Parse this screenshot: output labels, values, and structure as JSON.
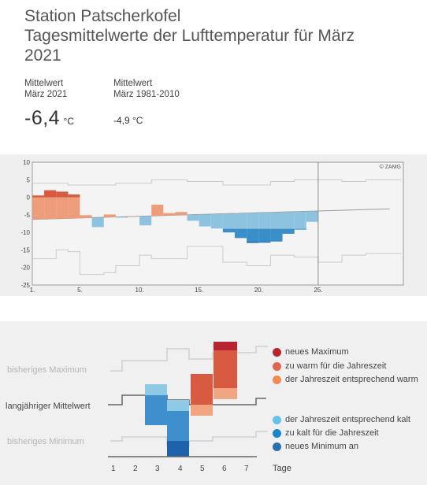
{
  "title_lines": [
    "Station Patscherkofel",
    "Tagesmittelwerte der Lufttemperatur für März",
    "2021"
  ],
  "stats": {
    "current": {
      "label1": "Mittelwert",
      "label2": "März 2021",
      "value": "-6,4",
      "unit": "°C"
    },
    "normal": {
      "label1": "Mittelwert",
      "label2": "März 1981-2010",
      "value": "-4,9 °C"
    }
  },
  "chart_data": {
    "type": "bar",
    "title": "Tagesmittelwerte der Lufttemperatur für März",
    "ylim": [
      -25,
      10
    ],
    "y_ticks": [
      "10",
      "5",
      "0",
      "-5",
      "-10",
      "-15",
      "-20",
      "-25"
    ],
    "x_ticks": [
      "1.",
      "5.",
      "10.",
      "15.",
      "20.",
      "25."
    ],
    "current_day": 25,
    "credit": "© ZAMG",
    "days": [
      1,
      2,
      3,
      4,
      5,
      6,
      7,
      8,
      9,
      10,
      11,
      12,
      13,
      14,
      15,
      16,
      17,
      18,
      19,
      20,
      21,
      22,
      23,
      24
    ],
    "temperature": [
      0.5,
      2,
      1.6,
      0.8,
      -5.1,
      -8.5,
      -4.9,
      -5.8,
      -5.4,
      -8,
      -2.1,
      -4.5,
      -4.2,
      -6.7,
      -8.3,
      -8.9,
      -10,
      -11.6,
      -13,
      -12.9,
      -12.6,
      -10.4,
      -9.2,
      -7
    ],
    "long_term_mean": [
      -6.3,
      -6.2,
      -6.1,
      -6.0,
      -5.9,
      -5.8,
      -5.7,
      -5.6,
      -5.5,
      -5.4,
      -5.3,
      -5.2,
      -5.1,
      -5.0,
      -4.9,
      -4.8,
      -4.7,
      -4.6,
      -4.5,
      -4.4,
      -4.3,
      -4.2,
      -4.1,
      -4.0,
      -3.9,
      -3.8,
      -3.7,
      -3.6,
      -3.5,
      -3.4,
      -3.3
    ],
    "prior_maximum": [
      4,
      4,
      4,
      3.5,
      3.5,
      3.5,
      3.5,
      4,
      4,
      4,
      5,
      5,
      5,
      4.5,
      4.5,
      4.5,
      3.5,
      3.5,
      3.5,
      3.5,
      4.5,
      4.5,
      5,
      5,
      5,
      5,
      4.5,
      4.5,
      5,
      5,
      5
    ],
    "prior_minimum": [
      -17.5,
      -17.5,
      -15,
      -15.5,
      -22,
      -22,
      -21.5,
      -19.5,
      -19.5,
      -16.5,
      -17.5,
      -17.5,
      -17.5,
      -14,
      -14,
      -14,
      -18.5,
      -18.5,
      -19.5,
      -19.5,
      -16.5,
      -16.5,
      -17,
      -17,
      -18.5,
      -18.5,
      -16.5,
      -16.5,
      -16,
      -16,
      -16
    ],
    "colors": {
      "new_max": "#b82530",
      "too_warm": "#d85a40",
      "seasonal_warm": "#ee9d7a",
      "seasonal_cold": "#8ec3e0",
      "too_cold": "#3a8fc8",
      "new_min": "#1d63ab"
    }
  },
  "legend": {
    "prior_max_label": "bisheriges Maximum",
    "mean_label": "langjähriger Mittelwert",
    "prior_min_label": "bisheriges Minimum",
    "day_ticks": [
      "1",
      "2",
      "3",
      "4",
      "5",
      "6",
      "7"
    ],
    "days_label": "Tage",
    "items": [
      {
        "text": "neues Maximum",
        "color": "#b82530"
      },
      {
        "text": "zu warm für die Jahreszeit",
        "color": "#e0664f"
      },
      {
        "text": "der Jahreszeit entsprechend warm",
        "color": "#f08a55"
      },
      {
        "text": "der Jahreszeit entsprechend kalt",
        "color": "#66c2ea"
      },
      {
        "text": "zu kalt für die Jahreszeit",
        "color": "#1c86cc"
      },
      {
        "text": "neues Minimum an",
        "color": "#2a6fb0"
      }
    ]
  }
}
